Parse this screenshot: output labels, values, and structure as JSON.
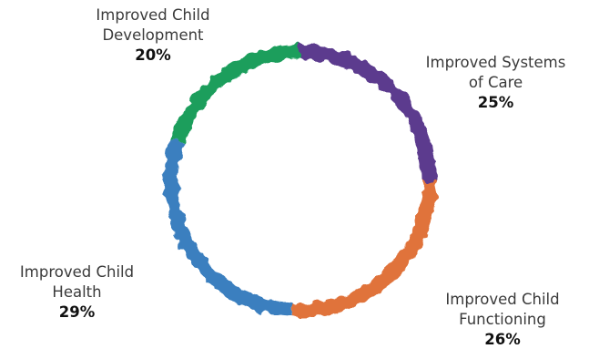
{
  "chart_data": {
    "type": "pie",
    "donut": true,
    "title": "",
    "slices": [
      {
        "line1": "Improved Systems",
        "line2": "of Care",
        "pct_label": "25%",
        "value": 25,
        "color": "#5b3a8e"
      },
      {
        "line1": "Improved Child",
        "line2": "Functioning",
        "pct_label": "26%",
        "value": 26,
        "color": "#e0733a"
      },
      {
        "line1": "Improved Child",
        "line2": "Health",
        "pct_label": "29%",
        "value": 29,
        "color": "#3a7fbf"
      },
      {
        "line1": "Improved Child",
        "line2": "Development",
        "pct_label": "20%",
        "value": 20,
        "color": "#1a9e5c"
      }
    ]
  }
}
